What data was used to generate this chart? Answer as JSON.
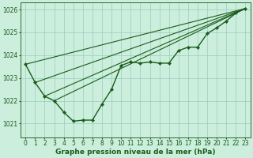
{
  "background_color": "#cceedd",
  "grid_color": "#99ccbb",
  "line_color": "#1a5c1a",
  "title": "Graphe pression niveau de la mer (hPa)",
  "title_fontsize": 6.5,
  "tick_fontsize": 5.5,
  "xlim": [
    -0.5,
    23.5
  ],
  "ylim": [
    1020.4,
    1026.3
  ],
  "yticks": [
    1021,
    1022,
    1023,
    1024,
    1025,
    1026
  ],
  "xtick_labels": [
    "0",
    "1",
    "2",
    "3",
    "4",
    "5",
    "6",
    "7",
    "8",
    "9",
    "10",
    "11",
    "12",
    "13",
    "14",
    "15",
    "16",
    "17",
    "18",
    "19",
    "20",
    "21",
    "22",
    "23"
  ],
  "main_series": {
    "x": [
      0,
      1,
      2,
      3,
      4,
      5,
      6,
      7,
      8,
      9,
      10,
      11,
      12,
      13,
      14,
      15,
      16,
      17,
      18,
      19,
      20,
      21,
      22,
      23
    ],
    "y": [
      1023.6,
      1022.8,
      1022.2,
      1022.0,
      1021.5,
      1021.1,
      1021.15,
      1021.15,
      1021.85,
      1022.5,
      1023.55,
      1023.7,
      1023.65,
      1023.7,
      1023.65,
      1023.65,
      1024.2,
      1024.35,
      1024.35,
      1024.95,
      1025.2,
      1025.5,
      1025.85,
      1026.05
    ]
  },
  "straight_lines": [
    {
      "x": [
        1,
        23
      ],
      "y": [
        1022.8,
        1026.05
      ]
    },
    {
      "x": [
        2,
        23
      ],
      "y": [
        1022.2,
        1026.05
      ]
    },
    {
      "x": [
        0,
        23
      ],
      "y": [
        1023.6,
        1026.05
      ]
    },
    {
      "x": [
        3,
        23
      ],
      "y": [
        1022.0,
        1026.05
      ]
    }
  ]
}
